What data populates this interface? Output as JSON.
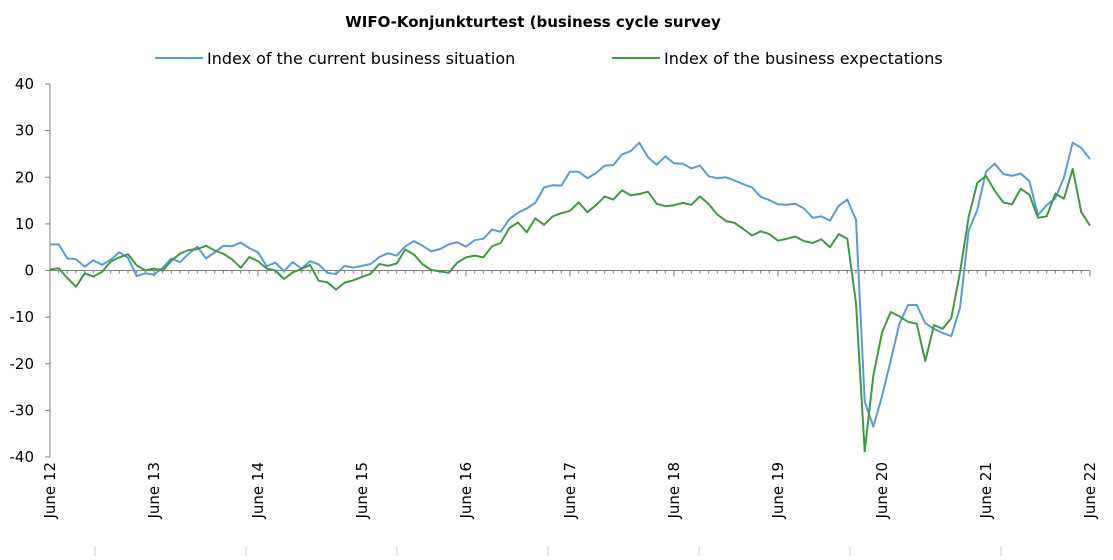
{
  "chart_data": {
    "type": "line",
    "title": "WIFO-Konjunkturtest (business cycle survey",
    "xlabel": "",
    "ylabel": "",
    "ylim": [
      -40,
      40
    ],
    "yticks": [
      40,
      30,
      20,
      10,
      0,
      -10,
      -20,
      -30,
      -40
    ],
    "x_tick_labels": [
      "June 12",
      "June 13",
      "June 14",
      "June 15",
      "June 16",
      "June 17",
      "June 18",
      "June 19",
      "June 20",
      "June 21",
      "June 22"
    ],
    "x_start": "2012-06",
    "x_end": "2022-06",
    "grid": false,
    "legend_position": "top",
    "series": [
      {
        "name": "Index of the current business situation",
        "color": "#5b9bd5",
        "values": [
          5.6,
          5.6,
          2.6,
          2.4,
          0.8,
          2.2,
          1.2,
          2.3,
          3.9,
          2.7,
          -1.2,
          -0.6,
          -0.9,
          0.6,
          2.6,
          1.8,
          3.6,
          5.1,
          2.6,
          3.9,
          5.3,
          5.2,
          6.0,
          4.8,
          3.9,
          0.9,
          1.7,
          -0.1,
          1.8,
          0.4,
          2.0,
          1.3,
          -0.5,
          -0.8,
          1.0,
          0.6,
          1.0,
          1.4,
          2.9,
          3.7,
          3.2,
          5.2,
          6.3,
          5.3,
          4.1,
          4.6,
          5.6,
          6.1,
          5.1,
          6.5,
          6.8,
          8.8,
          8.3,
          11.0,
          12.4,
          13.3,
          14.5,
          17.8,
          18.3,
          18.2,
          21.2,
          21.2,
          19.8,
          20.9,
          22.5,
          22.6,
          24.9,
          25.6,
          27.4,
          24.3,
          22.7,
          24.5,
          23.0,
          22.9,
          21.9,
          22.5,
          20.2,
          19.8,
          20.0,
          19.3,
          18.5,
          17.8,
          15.8,
          15.1,
          14.2,
          14.1,
          14.3,
          13.3,
          11.3,
          11.6,
          10.7,
          13.9,
          15.2,
          10.9,
          -28.1,
          -33.5,
          -27.0,
          -19.3,
          -11.5,
          -7.4,
          -7.4,
          -11.3,
          -12.5,
          -13.4,
          -14.1,
          -8.0,
          8.6,
          13.0,
          21.2,
          22.9,
          20.7,
          20.3,
          20.8,
          19.2,
          11.9,
          14.0,
          15.5,
          20.0,
          27.4,
          26.3,
          23.9
        ]
      },
      {
        "name": "Index of the business expectations",
        "color": "#3f9a3f",
        "values": [
          0.2,
          0.5,
          -1.6,
          -3.5,
          -0.6,
          -1.3,
          -0.3,
          1.9,
          2.8,
          3.5,
          1.1,
          0.0,
          0.4,
          0.0,
          2.1,
          3.6,
          4.4,
          4.6,
          5.3,
          4.3,
          3.6,
          2.4,
          0.6,
          2.9,
          2.0,
          0.4,
          0.0,
          -1.8,
          -0.4,
          0.3,
          1.2,
          -2.2,
          -2.5,
          -4.1,
          -2.6,
          -2.1,
          -1.4,
          -0.7,
          1.4,
          1.0,
          1.5,
          4.5,
          3.4,
          1.3,
          0.1,
          -0.2,
          -0.5,
          1.7,
          2.8,
          3.2,
          2.8,
          5.2,
          5.9,
          9.1,
          10.3,
          8.2,
          11.2,
          9.8,
          11.6,
          12.3,
          12.8,
          14.6,
          12.5,
          14.0,
          15.9,
          15.2,
          17.2,
          16.1,
          16.4,
          16.9,
          14.3,
          13.8,
          14.0,
          14.5,
          14.1,
          15.9,
          14.2,
          12.0,
          10.6,
          10.2,
          8.9,
          7.5,
          8.4,
          7.8,
          6.4,
          6.8,
          7.3,
          6.3,
          5.9,
          6.7,
          5.0,
          7.8,
          6.8,
          -7.0,
          -38.8,
          -22.6,
          -13.3,
          -8.9,
          -9.8,
          -11.0,
          -11.4,
          -19.4,
          -11.7,
          -12.5,
          -10.2,
          -0.4,
          11.5,
          18.8,
          20.3,
          17.1,
          14.6,
          14.2,
          17.5,
          16.3,
          11.3,
          11.6,
          16.5,
          15.4,
          21.8,
          12.5,
          9.6
        ]
      }
    ]
  }
}
